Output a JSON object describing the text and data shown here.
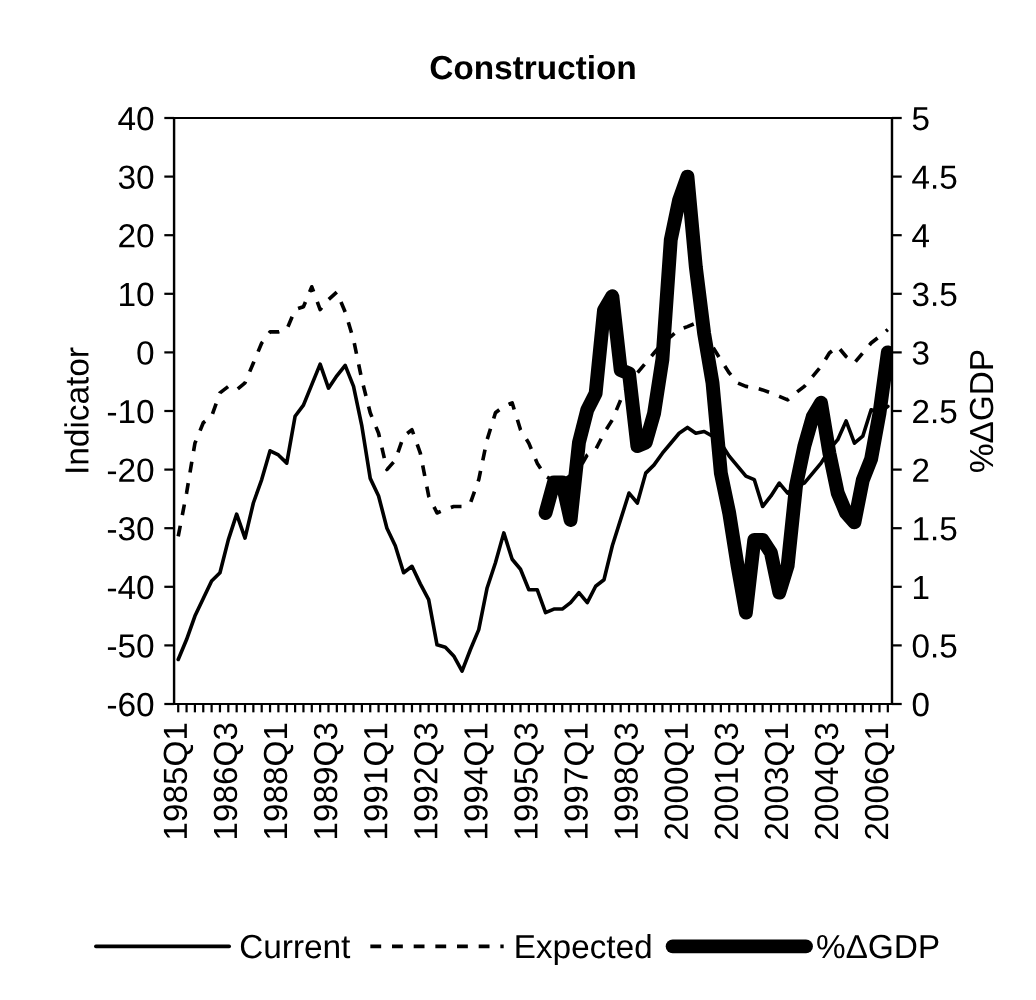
{
  "chart_data": {
    "type": "line",
    "title": "Construction",
    "ylabel": "Indicator",
    "y2label": "%ΔGDP",
    "categories": [
      "1985Q1",
      null,
      null,
      null,
      null,
      null,
      "1986Q3",
      null,
      null,
      null,
      null,
      null,
      "1988Q1",
      null,
      null,
      null,
      null,
      null,
      "1989Q3",
      null,
      null,
      null,
      null,
      null,
      "1991Q1",
      null,
      null,
      null,
      null,
      null,
      "1992Q3",
      null,
      null,
      null,
      null,
      null,
      "1994Q1",
      null,
      null,
      null,
      null,
      null,
      "1995Q3",
      null,
      null,
      null,
      null,
      null,
      "1997Q1",
      null,
      null,
      null,
      null,
      null,
      "1998Q3",
      null,
      null,
      null,
      null,
      null,
      "2000Q1",
      null,
      null,
      null,
      null,
      null,
      "2001Q3",
      null,
      null,
      null,
      null,
      null,
      "2003Q1",
      null,
      null,
      null,
      null,
      null,
      "2004Q3",
      null,
      null,
      null,
      null,
      null,
      "2006Q1",
      null
    ],
    "series": [
      {
        "name": "Current",
        "color": "#000000",
        "line_style": "solid",
        "values": [
          -52.4,
          -49,
          -45,
          -42,
          -39,
          -37.6,
          -32,
          -27.6,
          -31.7,
          -25.7,
          -21.7,
          -16.8,
          -17.5,
          -18.9,
          -10.9,
          -9,
          -5.5,
          -2,
          -6.1,
          -4,
          -2.2,
          -5.8,
          -12.6,
          -21.5,
          -24.5,
          -30,
          -33,
          -37.6,
          -36.5,
          -39.5,
          -42.2,
          -49.9,
          -50.3,
          -51.8,
          -54.4,
          -50.7,
          -47.3,
          -40.2,
          -35.9,
          -30.8,
          -35.3,
          -37,
          -40.5,
          -40.5,
          -44.4,
          -43.8,
          -43.8,
          -42.7,
          -41,
          -42.7,
          -39.9,
          -38.8,
          -33,
          -28.5,
          -24,
          -25.7,
          -20.6,
          -19.2,
          -17.2,
          -15.5,
          -13.8,
          -12.8,
          -13.8,
          -13.5,
          -14.3,
          -15.5,
          -17.7,
          -19.4,
          -21.1,
          -21.7,
          -26.3,
          -24.5,
          -22.3,
          -24,
          -22.8,
          -22.3,
          -20.6,
          -18.9,
          -16.6,
          -14.9,
          -11.7,
          -15.5,
          -14.3,
          -9.8,
          -10.3,
          -9.2
        ]
      },
      {
        "name": "Expected",
        "color": "#000000",
        "line_style": "dashed",
        "values": [
          -31.4,
          -24,
          -15.5,
          -12,
          -10.9,
          -6.9,
          -5.8,
          -6.4,
          -5.2,
          -1.8,
          1.6,
          3.5,
          3.5,
          3.9,
          7.3,
          7.8,
          11.2,
          7.3,
          9,
          10.3,
          6.9,
          2.2,
          -4.7,
          -10.3,
          -13.8,
          -20,
          -18.4,
          -14.3,
          -13.2,
          -17.2,
          -24.5,
          -27.4,
          -26.8,
          -26.3,
          -26.3,
          -25.7,
          -21.7,
          -14.9,
          -10.3,
          -9.2,
          -8.6,
          -13.2,
          -15.5,
          -18.9,
          -21.1,
          -22,
          -22,
          -21,
          -20,
          -17.5,
          -16.6,
          -13.8,
          -11.5,
          -8.1,
          -5.2,
          -3.5,
          -1.8,
          -0.1,
          1.6,
          2.7,
          3.9,
          4.4,
          5,
          2.7,
          1,
          -1.3,
          -3.5,
          -5.2,
          -5.8,
          -6,
          -6.4,
          -6.9,
          -7.5,
          -8.1,
          -6.9,
          -5.8,
          -4.1,
          -2.4,
          -0.1,
          1,
          -0.7,
          -1.8,
          -0.1,
          1.6,
          2.7,
          3.9
        ]
      },
      {
        "name": "%ΔGDP",
        "color": "#000000",
        "line_style": "solid",
        "axis": "y2",
        "values": [
          null,
          null,
          null,
          null,
          null,
          null,
          null,
          null,
          null,
          null,
          null,
          null,
          null,
          null,
          null,
          null,
          null,
          null,
          null,
          null,
          null,
          null,
          null,
          null,
          null,
          null,
          null,
          null,
          null,
          null,
          null,
          null,
          null,
          null,
          null,
          null,
          null,
          null,
          null,
          null,
          null,
          null,
          null,
          null,
          1.63,
          1.89,
          1.89,
          1.57,
          2.23,
          2.51,
          2.65,
          3.36,
          3.48,
          2.85,
          2.82,
          2.2,
          2.23,
          2.48,
          2.94,
          3.96,
          4.3,
          4.5,
          3.73,
          3.16,
          2.74,
          1.97,
          1.63,
          1.18,
          0.78,
          1.4,
          1.4,
          1.29,
          0.95,
          1.18,
          1.86,
          2.2,
          2.45,
          2.57,
          2.14,
          1.8,
          1.63,
          1.55,
          1.91,
          2.09,
          2.48,
          3.0
        ]
      }
    ],
    "ylim": [
      -60,
      40
    ],
    "yticks": [
      -60,
      -50,
      -40,
      -30,
      -20,
      -10,
      0,
      10,
      20,
      30,
      40
    ],
    "y2lim": [
      0,
      5
    ],
    "y2ticks": [
      0,
      0.5,
      1,
      1.5,
      2,
      2.5,
      3,
      3.5,
      4,
      4.5,
      5
    ],
    "legend": "bottom",
    "grid": false
  }
}
